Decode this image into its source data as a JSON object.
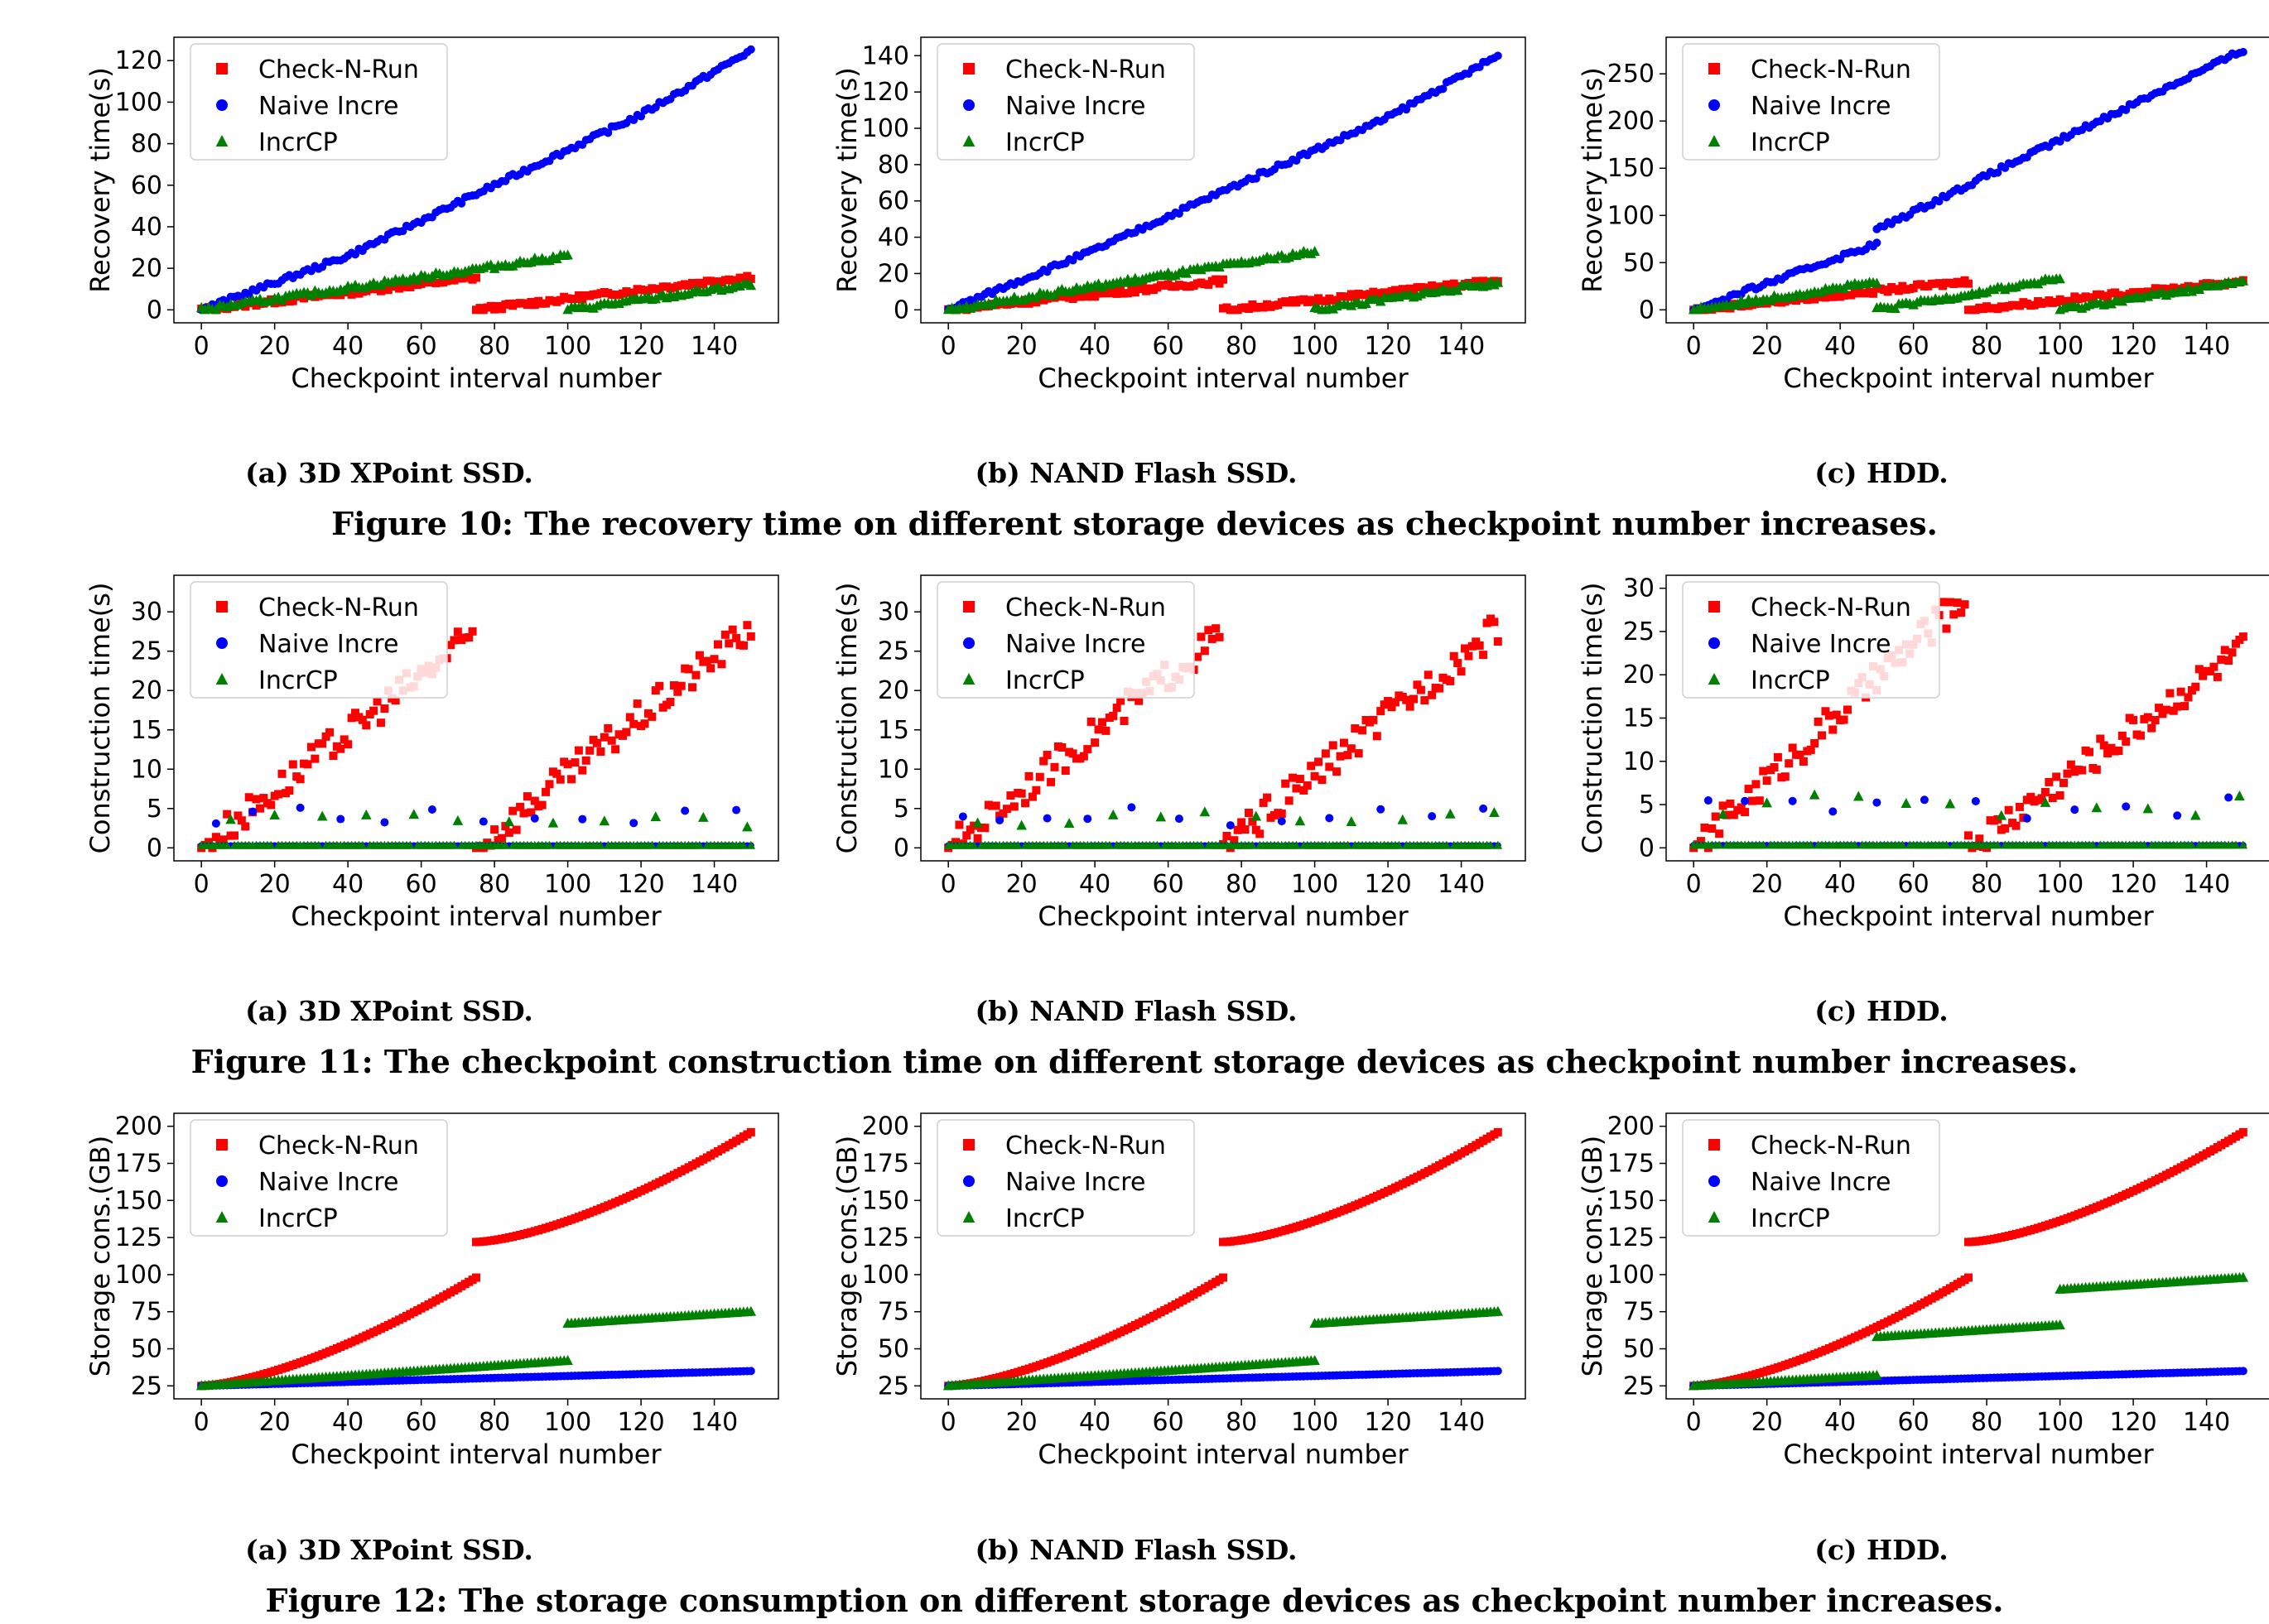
{
  "legend": {
    "entries": [
      {
        "name": "Check-N-Run",
        "color": "#ff0000",
        "marker": "square"
      },
      {
        "name": "Naive Incre",
        "color": "#0000ff",
        "marker": "circle"
      },
      {
        "name": "IncrCP",
        "color": "#008000",
        "marker": "triangle"
      }
    ]
  },
  "xlabel": "Checkpoint interval number",
  "subcaptions": [
    "(a) 3D XPoint SSD.",
    "(b) NAND Flash SSD.",
    "(c) HDD."
  ],
  "figures": [
    {
      "caption": "Figure 10: The recovery time on different storage devices as checkpoint number increases.",
      "ylabel": "Recovery time(s)"
    },
    {
      "caption": "Figure 11: The checkpoint construction time on different storage devices as checkpoint number increases.",
      "ylabel": "Construction time(s)"
    },
    {
      "caption": "Figure 12: The storage consumption on different storage devices as checkpoint number increases.",
      "ylabel": "Storage cons.(GB)"
    }
  ],
  "chart_data": [
    {
      "figure": 10,
      "panel": "(a) 3D XPoint SSD.",
      "type": "scatter",
      "xlabel": "Checkpoint interval number",
      "ylabel": "Recovery time(s)",
      "xlim": [
        0,
        150
      ],
      "ylim": [
        0,
        125
      ],
      "xticks": [
        0,
        20,
        40,
        60,
        80,
        100,
        120,
        140
      ],
      "yticks": [
        0,
        20,
        40,
        60,
        80,
        100,
        120
      ],
      "series": [
        {
          "name": "Check-N-Run",
          "segments": [
            {
              "x": [
                0,
                75
              ],
              "y": [
                0,
                15.5
              ]
            },
            {
              "x": [
                75,
                150
              ],
              "y": [
                0,
                16
              ]
            }
          ]
        },
        {
          "name": "Naive Incre",
          "segments": [
            {
              "x": [
                0,
                40,
                80,
                120,
                150
              ],
              "y": [
                0,
                26,
                60,
                94,
                125
              ]
            }
          ]
        },
        {
          "name": "IncrCP",
          "segments": [
            {
              "x": [
                0,
                100
              ],
              "y": [
                0,
                26
              ]
            },
            {
              "x": [
                100,
                150
              ],
              "y": [
                0,
                12
              ]
            }
          ]
        }
      ]
    },
    {
      "figure": 10,
      "panel": "(b) NAND Flash SSD.",
      "type": "scatter",
      "xlabel": "Checkpoint interval number",
      "ylabel": "Recovery time(s)",
      "xlim": [
        0,
        150
      ],
      "ylim": [
        0,
        143
      ],
      "xticks": [
        0,
        20,
        40,
        60,
        80,
        100,
        120,
        140
      ],
      "yticks": [
        0,
        20,
        40,
        60,
        80,
        100,
        120,
        140
      ],
      "series": [
        {
          "name": "Check-N-Run",
          "segments": [
            {
              "x": [
                0,
                75
              ],
              "y": [
                0,
                16
              ]
            },
            {
              "x": [
                75,
                150
              ],
              "y": [
                0,
                16
              ]
            }
          ]
        },
        {
          "name": "Naive Incre",
          "segments": [
            {
              "x": [
                0,
                40,
                80,
                120,
                150
              ],
              "y": [
                0,
                33,
                70,
                106,
                140
              ]
            }
          ]
        },
        {
          "name": "IncrCP",
          "segments": [
            {
              "x": [
                0,
                100
              ],
              "y": [
                0,
                32
              ]
            },
            {
              "x": [
                100,
                150
              ],
              "y": [
                0,
                15
              ]
            }
          ]
        }
      ]
    },
    {
      "figure": 10,
      "panel": "(c) HDD.",
      "type": "scatter",
      "xlabel": "Checkpoint interval number",
      "ylabel": "Recovery time(s)",
      "xlim": [
        0,
        150
      ],
      "ylim": [
        0,
        275
      ],
      "xticks": [
        0,
        20,
        40,
        60,
        80,
        100,
        120,
        140
      ],
      "yticks": [
        0,
        50,
        100,
        150,
        200,
        250
      ],
      "series": [
        {
          "name": "Check-N-Run",
          "segments": [
            {
              "x": [
                0,
                75
              ],
              "y": [
                0,
                30
              ]
            },
            {
              "x": [
                75,
                150
              ],
              "y": [
                0,
                30
              ]
            }
          ]
        },
        {
          "name": "Naive Incre",
          "segments": [
            {
              "x": [
                0,
                50
              ],
              "y": [
                0,
                70
              ]
            },
            {
              "x": [
                50,
                100,
                150
              ],
              "y": [
                85,
                180,
                275
              ]
            }
          ]
        },
        {
          "name": "IncrCP",
          "segments": [
            {
              "x": [
                0,
                50
              ],
              "y": [
                0,
                29
              ]
            },
            {
              "x": [
                50,
                100
              ],
              "y": [
                0,
                33
              ]
            },
            {
              "x": [
                100,
                150
              ],
              "y": [
                0,
                30
              ]
            }
          ]
        }
      ]
    },
    {
      "figure": 11,
      "panel": "(a) 3D XPoint SSD.",
      "type": "scatter",
      "xlabel": "Checkpoint interval number",
      "ylabel": "Construction time(s)",
      "xlim": [
        0,
        150
      ],
      "ylim": [
        0,
        33
      ],
      "xticks": [
        0,
        20,
        40,
        60,
        80,
        100,
        120,
        140
      ],
      "yticks": [
        0,
        5,
        10,
        15,
        20,
        25,
        30
      ],
      "series": [
        {
          "name": "Check-N-Run",
          "segments": [
            {
              "x": [
                0,
                74
              ],
              "y": [
                0,
                27
              ]
            },
            {
              "x": [
                75,
                150
              ],
              "y": [
                0,
                28
              ]
            }
          ]
        },
        {
          "name": "Naive Incre",
          "baseline": 0.3,
          "spikes": [
            4,
            14,
            27,
            38,
            50,
            63,
            77,
            91,
            104,
            118,
            132,
            146
          ],
          "spike_level": 4
        },
        {
          "name": "IncrCP",
          "baseline": 0.3,
          "spikes": [
            8,
            20,
            33,
            45,
            58,
            70,
            84,
            96,
            110,
            124,
            137,
            149
          ],
          "spike_level": 3.5
        }
      ]
    },
    {
      "figure": 11,
      "panel": "(b) NAND Flash SSD.",
      "type": "scatter",
      "xlabel": "Checkpoint interval number",
      "ylabel": "Construction time(s)",
      "xlim": [
        0,
        150
      ],
      "ylim": [
        0,
        33
      ],
      "xticks": [
        0,
        20,
        40,
        60,
        80,
        100,
        120,
        140
      ],
      "yticks": [
        0,
        5,
        10,
        15,
        20,
        25,
        30
      ],
      "series": [
        {
          "name": "Check-N-Run",
          "segments": [
            {
              "x": [
                0,
                74
              ],
              "y": [
                0,
                27
              ]
            },
            {
              "x": [
                75,
                150
              ],
              "y": [
                0,
                28
              ]
            }
          ]
        },
        {
          "name": "Naive Incre",
          "baseline": 0.3,
          "spikes": [
            4,
            14,
            27,
            38,
            50,
            63,
            77,
            91,
            104,
            118,
            132,
            146
          ],
          "spike_level": 4
        },
        {
          "name": "IncrCP",
          "baseline": 0.3,
          "spikes": [
            8,
            20,
            33,
            45,
            58,
            70,
            84,
            96,
            110,
            124,
            137,
            149
          ],
          "spike_level": 3.5
        }
      ]
    },
    {
      "figure": 11,
      "panel": "(c) HDD.",
      "type": "scatter",
      "xlabel": "Checkpoint interval number",
      "ylabel": "Construction time(s)",
      "xlim": [
        0,
        150
      ],
      "ylim": [
        0,
        30
      ],
      "xticks": [
        0,
        20,
        40,
        60,
        80,
        100,
        120,
        140
      ],
      "yticks": [
        0,
        5,
        10,
        15,
        20,
        25,
        30
      ],
      "series": [
        {
          "name": "Check-N-Run",
          "segments": [
            {
              "x": [
                0,
                74
              ],
              "y": [
                0,
                29
              ]
            },
            {
              "x": [
                75,
                150
              ],
              "y": [
                0,
                23
              ]
            }
          ]
        },
        {
          "name": "Naive Incre",
          "baseline": 0.3,
          "spikes": [
            4,
            14,
            27,
            38,
            50,
            63,
            77,
            91,
            104,
            118,
            132,
            146
          ],
          "spike_level": 4.5
        },
        {
          "name": "IncrCP",
          "baseline": 0.3,
          "spikes": [
            8,
            20,
            33,
            45,
            58,
            70,
            84,
            96,
            110,
            124,
            137,
            149
          ],
          "spike_level": 5
        }
      ]
    },
    {
      "figure": 12,
      "panel": "(a) 3D XPoint SSD.",
      "type": "scatter",
      "xlabel": "Checkpoint interval number",
      "ylabel": "Storage cons.(GB)",
      "xlim": [
        0,
        150
      ],
      "ylim": [
        25,
        200
      ],
      "xticks": [
        0,
        20,
        40,
        60,
        80,
        100,
        120,
        140
      ],
      "yticks": [
        25,
        50,
        75,
        100,
        125,
        150,
        175,
        200
      ],
      "series": [
        {
          "name": "Check-N-Run",
          "segments": [
            {
              "x": [
                0,
                75
              ],
              "y": [
                25,
                98
              ],
              "curve": 2
            },
            {
              "x": [
                75,
                150
              ],
              "y": [
                122,
                196
              ],
              "curve": 2
            }
          ]
        },
        {
          "name": "Naive Incre",
          "segments": [
            {
              "x": [
                0,
                150
              ],
              "y": [
                25,
                35
              ]
            }
          ]
        },
        {
          "name": "IncrCP",
          "segments": [
            {
              "x": [
                0,
                100
              ],
              "y": [
                25,
                42
              ]
            },
            {
              "x": [
                100,
                150
              ],
              "y": [
                67,
                75
              ]
            }
          ]
        }
      ]
    },
    {
      "figure": 12,
      "panel": "(b) NAND Flash SSD.",
      "type": "scatter",
      "xlabel": "Checkpoint interval number",
      "ylabel": "Storage cons.(GB)",
      "xlim": [
        0,
        150
      ],
      "ylim": [
        25,
        200
      ],
      "xticks": [
        0,
        20,
        40,
        60,
        80,
        100,
        120,
        140
      ],
      "yticks": [
        25,
        50,
        75,
        100,
        125,
        150,
        175,
        200
      ],
      "series": [
        {
          "name": "Check-N-Run",
          "segments": [
            {
              "x": [
                0,
                75
              ],
              "y": [
                25,
                98
              ],
              "curve": 2
            },
            {
              "x": [
                75,
                150
              ],
              "y": [
                122,
                196
              ],
              "curve": 2
            }
          ]
        },
        {
          "name": "Naive Incre",
          "segments": [
            {
              "x": [
                0,
                150
              ],
              "y": [
                25,
                35
              ]
            }
          ]
        },
        {
          "name": "IncrCP",
          "segments": [
            {
              "x": [
                0,
                100
              ],
              "y": [
                25,
                42
              ]
            },
            {
              "x": [
                100,
                150
              ],
              "y": [
                67,
                75
              ]
            }
          ]
        }
      ]
    },
    {
      "figure": 12,
      "panel": "(c) HDD.",
      "type": "scatter",
      "xlabel": "Checkpoint interval number",
      "ylabel": "Storage cons.(GB)",
      "xlim": [
        0,
        150
      ],
      "ylim": [
        25,
        200
      ],
      "xticks": [
        0,
        20,
        40,
        60,
        80,
        100,
        120,
        140
      ],
      "yticks": [
        25,
        50,
        75,
        100,
        125,
        150,
        175,
        200
      ],
      "series": [
        {
          "name": "Check-N-Run",
          "segments": [
            {
              "x": [
                0,
                75
              ],
              "y": [
                25,
                98
              ],
              "curve": 2
            },
            {
              "x": [
                75,
                150
              ],
              "y": [
                122,
                196
              ],
              "curve": 2
            }
          ]
        },
        {
          "name": "Naive Incre",
          "segments": [
            {
              "x": [
                0,
                150
              ],
              "y": [
                25,
                35
              ]
            }
          ]
        },
        {
          "name": "IncrCP",
          "segments": [
            {
              "x": [
                0,
                50
              ],
              "y": [
                25,
                32
              ]
            },
            {
              "x": [
                50,
                100
              ],
              "y": [
                58,
                66
              ]
            },
            {
              "x": [
                100,
                150
              ],
              "y": [
                90,
                98
              ]
            }
          ]
        }
      ]
    }
  ]
}
